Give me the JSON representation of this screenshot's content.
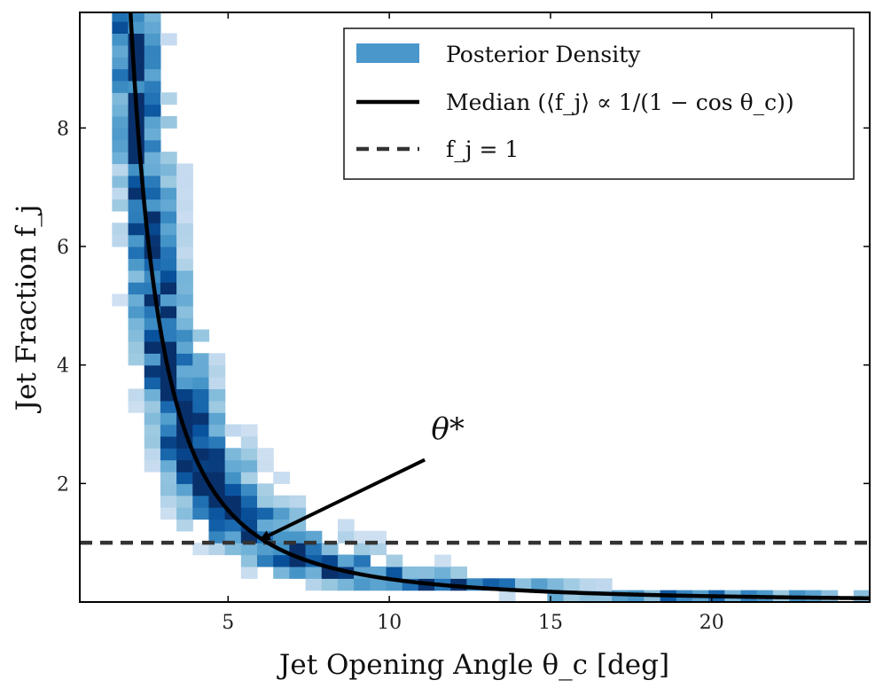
{
  "chart_data": {
    "type": "heatmap",
    "title": "",
    "xlabel": "Jet Opening Angle θ_c [deg]",
    "ylabel": "Jet Fraction f_j",
    "xlim": [
      0.4,
      24.9
    ],
    "ylim": [
      0.0,
      9.95
    ],
    "xticks": [
      5,
      10,
      15,
      20
    ],
    "xtick_labels": [
      "5",
      "10",
      "15",
      "20"
    ],
    "yticks": [
      2,
      4,
      6,
      8
    ],
    "ytick_labels": [
      "2",
      "4",
      "6",
      "8"
    ],
    "grid": false,
    "legend": {
      "position": "top-right",
      "entries": [
        {
          "label": "Posterior Density",
          "style": "patch",
          "color": "#4a97cc"
        },
        {
          "label": "Median (⟨f_j⟩ ∝ 1/(1 − cos θ_c))",
          "style": "solid-line",
          "color": "#000000"
        },
        {
          "label": "f_j = 1",
          "style": "dashed-line",
          "color": "#333333"
        }
      ]
    },
    "series": [
      {
        "name": "Median (⟨f_j⟩ ∝ 1/(1 − cos θ_c))",
        "kind": "curve",
        "formula": "f_j = 0.0059 / (1 - cos(theta_deg * pi / 180))",
        "color": "#000000"
      },
      {
        "name": "f_j = 1",
        "kind": "hline",
        "y": 1.0,
        "color": "#333333"
      }
    ],
    "annotations": [
      {
        "text": "θ*",
        "text_xy": [
          11.3,
          2.75
        ],
        "arrow_from": [
          11.1,
          2.4
        ],
        "arrow_to": [
          5.8,
          1.0
        ]
      }
    ],
    "histogram": {
      "x_range": [
        0.4,
        24.9
      ],
      "y_range": [
        0.0,
        10.0
      ],
      "nx": 49,
      "ny": 50,
      "colormap": "Blues",
      "density_model": "ridge along median curve with log-normal scatter",
      "median_amplitude": 0.0059,
      "scatter": 0.42,
      "seed": 7
    }
  }
}
